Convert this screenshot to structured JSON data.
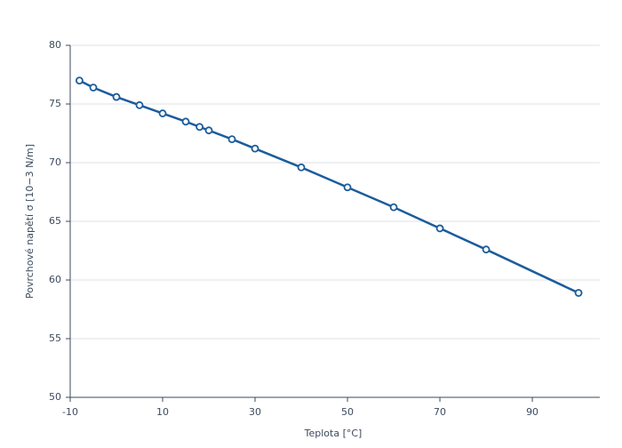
{
  "chart_data": {
    "type": "line",
    "x_label": "Teplota [°C]",
    "y_label": "Povrchové napětí σ [10−3 N/m]",
    "x": [
      -8,
      -5,
      0,
      5,
      10,
      15,
      18,
      20,
      25,
      30,
      40,
      50,
      60,
      70,
      80,
      100
    ],
    "series": [
      {
        "name": "Povrchové napětí",
        "color": "#1b5c9c",
        "values": [
          77.0,
          76.4,
          75.6,
          74.9,
          74.2,
          73.5,
          73.05,
          72.75,
          72.0,
          71.2,
          69.6,
          67.9,
          66.2,
          64.4,
          62.6,
          58.9
        ]
      }
    ],
    "xlim": [
      -10,
      104.6
    ],
    "xticks": [
      -10,
      10,
      30,
      50,
      70,
      90
    ],
    "ylim": [
      50,
      80
    ],
    "yticks": [
      50,
      55,
      60,
      65,
      70,
      75,
      80
    ],
    "grid": true
  }
}
